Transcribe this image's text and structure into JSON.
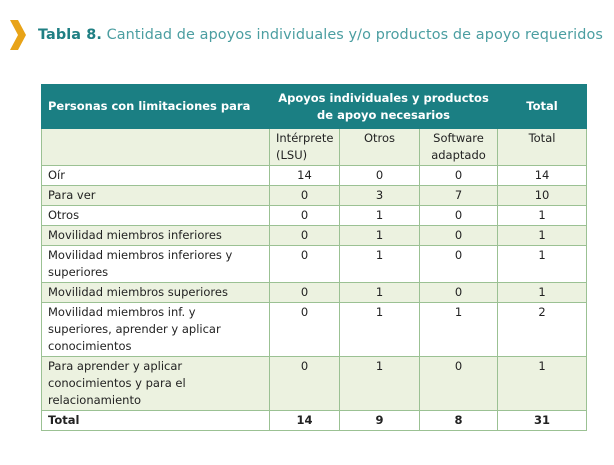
{
  "title": {
    "lead": "Tabla 8.",
    "rest": "Cantidad de apoyos individuales y/o productos de apoyo requeridos"
  },
  "table": {
    "header": {
      "col1": "Personas con limitaciones para",
      "group": "Apoyos individuales y productos de apoyo necesarios",
      "total": "Total"
    },
    "subheader": [
      "Intérprete (LSU)",
      "Otros",
      "Software adaptado",
      "Total"
    ],
    "rows": [
      {
        "label": "Oír",
        "values": [
          "14",
          "0",
          "0",
          "14"
        ]
      },
      {
        "label": "Para ver",
        "values": [
          "0",
          "3",
          "7",
          "10"
        ]
      },
      {
        "label": "Otros",
        "values": [
          "0",
          "1",
          "0",
          "1"
        ]
      },
      {
        "label": "Movilidad miembros inferiores",
        "values": [
          "0",
          "1",
          "0",
          "1"
        ]
      },
      {
        "label": "Movilidad miembros inferiores y superiores",
        "values": [
          "0",
          "1",
          "0",
          "1"
        ]
      },
      {
        "label": "Movilidad miembros superiores",
        "values": [
          "0",
          "1",
          "0",
          "1"
        ]
      },
      {
        "label": "Movilidad miembros inf. y superiores, aprender y aplicar conocimientos",
        "values": [
          "0",
          "1",
          "1",
          "2"
        ]
      },
      {
        "label": "Para aprender y aplicar conocimientos y para el relacionamiento",
        "values": [
          "0",
          "1",
          "0",
          "1"
        ]
      }
    ],
    "total_row": {
      "label": "Total",
      "values": [
        "14",
        "9",
        "8",
        "31"
      ]
    }
  },
  "colors": {
    "header_bg": "#1b7f83",
    "shade_bg": "#ecf2e0",
    "border": "#9bc193",
    "chevron": "#e8a317"
  },
  "icons": {
    "chevron": "chevron-right-icon"
  }
}
